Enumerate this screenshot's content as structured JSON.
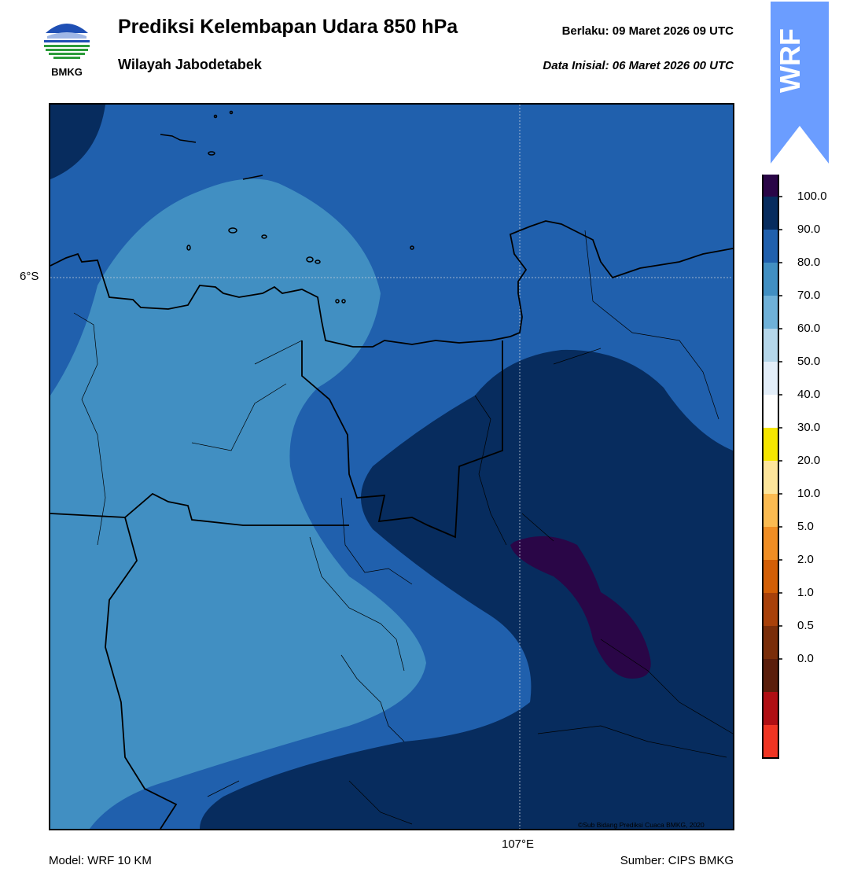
{
  "header": {
    "title": "Prediksi Kelembapan Udara 850 hPa",
    "subtitle": "Wilayah Jabodetabek",
    "valid": "Berlaku:  09 Maret 2026 09 UTC",
    "initial": "Data Inisial:  06 Maret 2026 00 UTC"
  },
  "logo": {
    "text": "BMKG",
    "icon": "bmkg-logo"
  },
  "badge": {
    "text": "WRF",
    "color": "#6b9dff"
  },
  "map": {
    "lat_label": "6°S",
    "lon_label": "107°E",
    "copyright": "©Sub Bidang Prediksi Cuaca BMKG, 2020"
  },
  "colorbar": {
    "ticks": [
      "100.0",
      "90.0",
      "80.0",
      "70.0",
      "60.0",
      "50.0",
      "40.0",
      "30.0",
      "20.0",
      "10.0",
      "5.0",
      "2.0",
      "1.0",
      "0.5",
      "0.0"
    ],
    "colors": [
      "#f03523",
      "#b00f14",
      "#5a1e0c",
      "#7a2e0a",
      "#a8410a",
      "#d35f06",
      "#f08e24",
      "#fbbb51",
      "#fde59b",
      "#f5e600",
      "#ffffff",
      "#e3eef9",
      "#b5d7ea",
      "#6fb1d8",
      "#418fc2",
      "#2060ad",
      "#072c5e",
      "#2a0647"
    ]
  },
  "footer": {
    "model": "Model: WRF 10 KM",
    "source": "Sumber: CIPS BMKG"
  }
}
